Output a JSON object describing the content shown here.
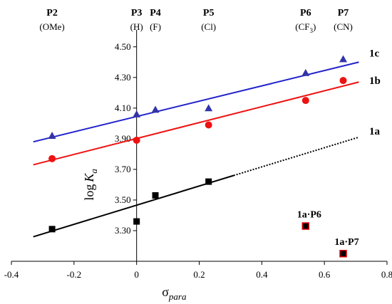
{
  "chart_data": {
    "type": "scatter",
    "xlabel": "σ",
    "xlabel_sub": "para",
    "ylabel": "log",
    "ylabel_italic": "K",
    "ylabel_sub": "a",
    "xlim": [
      -0.4,
      0.8
    ],
    "ylim": [
      3.1,
      4.55
    ],
    "x_ticks": [
      -0.4,
      -0.2,
      0,
      0.2,
      0.4,
      0.6,
      0.8
    ],
    "x_tick_labels": [
      "-0.4",
      "-0.2",
      "0",
      "0.2",
      "0.4",
      "0.6",
      "0.8"
    ],
    "y_ticks": [
      3.3,
      3.5,
      3.7,
      3.9,
      4.1,
      4.3,
      4.5
    ],
    "y_tick_labels": [
      "3.30",
      "3.50",
      "3.70",
      "3.90",
      "4.10",
      "4.30",
      "4.50"
    ],
    "grid": false,
    "probes": [
      {
        "name": "P2",
        "sub": "(OMe)",
        "x": -0.27
      },
      {
        "name": "P3",
        "sub": "(H)",
        "x": 0
      },
      {
        "name": "P4",
        "sub": "(F)",
        "x": 0.06
      },
      {
        "name": "P5",
        "sub": "(Cl)",
        "x": 0.23
      },
      {
        "name": "P6",
        "sub": "(CF",
        "sub_subscript": "3",
        "sub_close": ")",
        "x": 0.54
      },
      {
        "name": "P7",
        "sub": "(CN)",
        "x": 0.66
      }
    ],
    "series": [
      {
        "name": "1c",
        "marker": "triangle",
        "color": "#3333aa",
        "line_color": "#2222cc",
        "x": [
          -0.27,
          0,
          0.06,
          0.23,
          0.54,
          0.66
        ],
        "y": [
          3.92,
          4.06,
          4.09,
          4.1,
          4.33,
          4.42
        ],
        "fit": {
          "x": [
            -0.33,
            0.71
          ],
          "y": [
            3.88,
            4.4
          ]
        },
        "label_y": 4.46
      },
      {
        "name": "1b",
        "marker": "circle",
        "color": "#ee1111",
        "line_color": "#ee1111",
        "x": [
          -0.27,
          0,
          0.23,
          0.54,
          0.66
        ],
        "y": [
          3.77,
          3.89,
          3.99,
          4.15,
          4.28
        ],
        "fit": {
          "x": [
            -0.33,
            0.71
          ],
          "y": [
            3.73,
            4.27
          ]
        },
        "label_y": 4.28
      },
      {
        "name": "1a",
        "marker": "square",
        "color": "#000000",
        "line_color": "#000000",
        "x": [
          -0.27,
          0,
          0.06,
          0.23
        ],
        "y": [
          3.31,
          3.36,
          3.53,
          3.62
        ],
        "fit": {
          "x": [
            -0.33,
            0.31
          ],
          "y": [
            3.26,
            3.66
          ]
        },
        "fit_extension": {
          "x": [
            0.31,
            0.71
          ],
          "y": [
            3.66,
            3.91
          ]
        },
        "label_y": 3.95
      }
    ],
    "outliers": [
      {
        "label": "1a·P6",
        "x": 0.54,
        "y": 3.33,
        "marker": "square",
        "fill": "#000000",
        "edge": "#dd0000"
      },
      {
        "label": "1a·P7",
        "x": 0.66,
        "y": 3.15,
        "marker": "square",
        "fill": "#000000",
        "edge": "#dd0000"
      }
    ]
  }
}
